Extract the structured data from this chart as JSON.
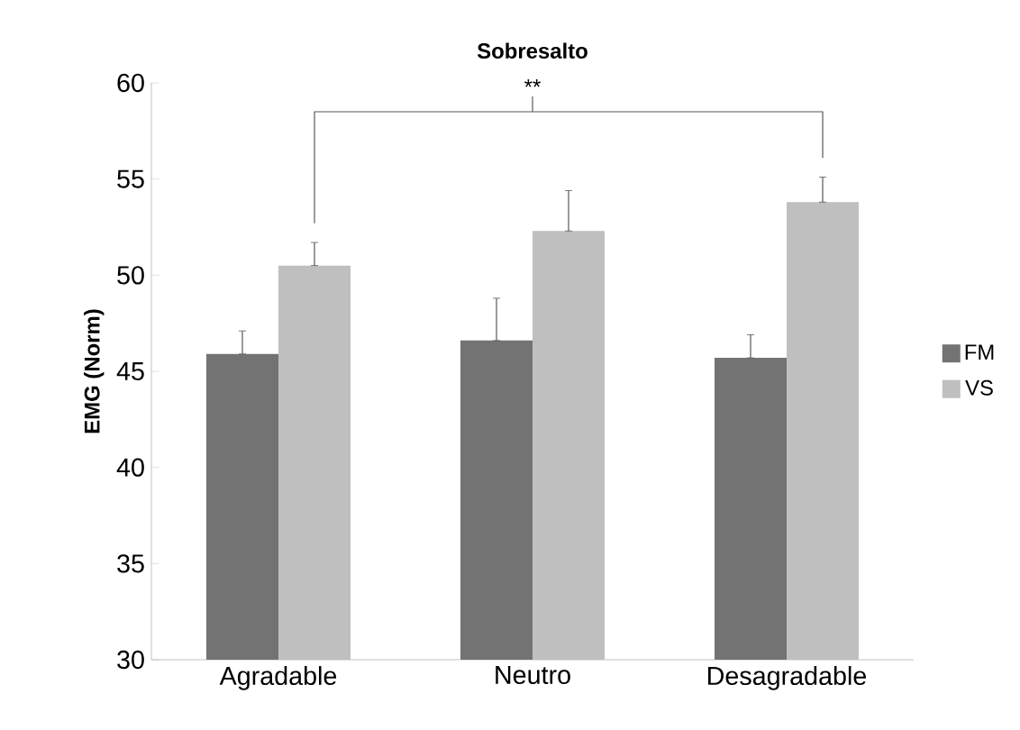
{
  "chart_data": {
    "type": "bar",
    "title": "Sobresalto",
    "ylabel": "EMG (Norm)",
    "categories": [
      "Agradable",
      "Neutro",
      "Desagradable"
    ],
    "series": [
      {
        "name": "FM",
        "color": "#737373",
        "values": [
          45.9,
          46.6,
          45.7
        ],
        "errors": [
          [
            45.9,
            47.1
          ],
          [
            46.6,
            48.8
          ],
          [
            45.7,
            46.9
          ]
        ]
      },
      {
        "name": "VS",
        "color": "#bfbfbf",
        "values": [
          50.5,
          52.3,
          53.8
        ],
        "errors": [
          [
            50.5,
            51.7
          ],
          [
            52.3,
            54.4
          ],
          [
            53.8,
            55.1
          ]
        ]
      }
    ],
    "ylim": [
      30,
      60
    ],
    "yticks": [
      30,
      35,
      40,
      45,
      50,
      55,
      60
    ],
    "annotations": [
      "**"
    ],
    "grid": false,
    "legend": "right"
  }
}
